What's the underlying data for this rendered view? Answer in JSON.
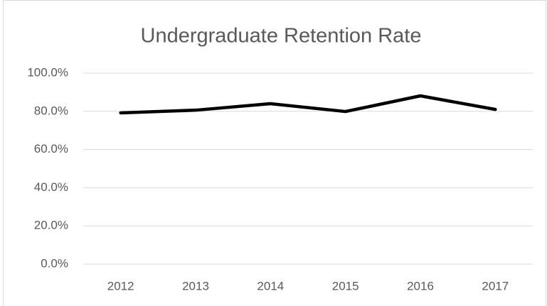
{
  "chart_data": {
    "type": "line",
    "title": "Undergraduate Retention Rate",
    "categories": [
      "2012",
      "2013",
      "2014",
      "2015",
      "2016",
      "2017"
    ],
    "values": [
      79.2,
      80.6,
      84,
      79.9,
      88.1,
      81
    ],
    "color": "#000000",
    "ylim": [
      0,
      100
    ],
    "yticks": [
      {
        "value": 0,
        "label": "0.0%"
      },
      {
        "value": 20,
        "label": "20.0%"
      },
      {
        "value": 40,
        "label": "40.0%"
      },
      {
        "value": 60,
        "label": "60.0%"
      },
      {
        "value": 80,
        "label": "80.0%"
      },
      {
        "value": 100,
        "label": "100.0%"
      }
    ],
    "grid": true
  }
}
